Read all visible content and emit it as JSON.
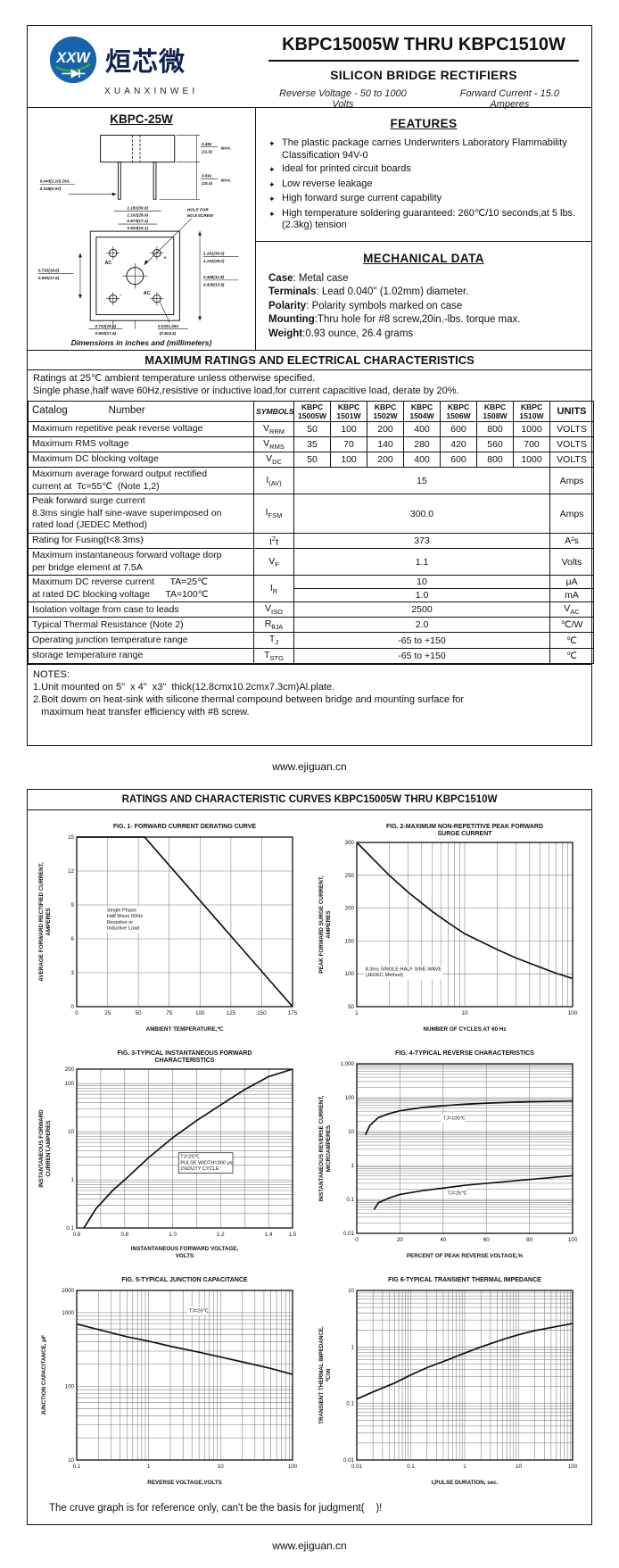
{
  "page1": {
    "logo": {
      "icon_text": "XXW",
      "cn": "烜芯微",
      "en": "XUANXINWEI"
    },
    "title": "KBPC15005W THRU KBPC1510W",
    "subtitle": "SILICON BRIDGE RECTIFIERS",
    "tagline_left": "Reverse Voltage - 50 to 1000 Volts",
    "tagline_right": "Forward Current - 15.0 Amperes",
    "package": {
      "name": "KBPC-25W",
      "labels": [
        "0.452",
        "(11.5)",
        "MAX.",
        "0.591",
        "(15.0)",
        "MAX.",
        "0.043(1.10) DIA.",
        "0.038(0.97)",
        "1.181(30.0)",
        "1.102(28.0)",
        "0.673(17.1)",
        "0.633(16.1)",
        "HOLE FOR",
        "NO.8 SCREW",
        "0.732(18.6)",
        "0.692(17.6)",
        "1.181(30.0)",
        "1.102(28.0)",
        "0.468(11.9)",
        "0.429(10.9)",
        "AC",
        "+",
        "-",
        "AC",
        "0.732(18.6)",
        "0.692(17.6)",
        "0.033x.250",
        "(0.8x6.4)"
      ],
      "caption": "Dimensions in inches and (millimeters)"
    },
    "features": {
      "heading": "FEATURES",
      "bullet": "✦",
      "items": [
        "The plastic package carries Underwriters Laboratory Flammability Classification 94V-0",
        "Ideal for printed circuit boards",
        "Low reverse leakage",
        "High forward surge current capability",
        "High temperature soldering guaranteed: 260℃/10 seconds,at 5 lbs. (2.3kg) tension"
      ]
    },
    "mech": {
      "heading": "MECHANICAL DATA",
      "lines": [
        {
          "label": "Case",
          "text": ": Metal case"
        },
        {
          "label": "Terminals",
          "text": ": Lead 0.040\"  (1.02mm) diameter."
        },
        {
          "label": "Polarity",
          "text": ": Polarity symbols marked on case"
        },
        {
          "label": "Mounting",
          "text": ":Thru hole for #8 screw,20in.-lbs. torque max."
        },
        {
          "label": "Weight",
          "text": ":0.93 ounce, 26.4 grams"
        }
      ]
    },
    "ratings": {
      "heading": "MAXIMUM RATINGS AND ELECTRICAL CHARACTERISTICS",
      "note1": "Ratings at 25℃ ambient temperature unless otherwise specified.",
      "note2": "Single phase,half wave 60Hz,resistive or inductive load,for current capacitive load, derate by 20%.",
      "col_catalog1": "Catalog",
      "col_catalog2": "Number",
      "col_symbols": "SYMBOLS",
      "col_units": "UNITS",
      "parts": [
        [
          "KBPC",
          "15005W"
        ],
        [
          "KBPC",
          "1501W"
        ],
        [
          "KBPC",
          "1502W"
        ],
        [
          "KBPC",
          "1504W"
        ],
        [
          "KBPC",
          "1506W"
        ],
        [
          "KBPC",
          "1508W"
        ],
        [
          "KBPC",
          "1510W"
        ]
      ],
      "rows": [
        {
          "type": "each",
          "param": [
            "Maximum repetitive peak reverse voltage"
          ],
          "sym": {
            "t": "V",
            "sub": "RRM"
          },
          "values": [
            "50",
            "100",
            "200",
            "400",
            "600",
            "800",
            "1000"
          ],
          "units": "VOLTS"
        },
        {
          "type": "each",
          "param": [
            "Maximum RMS voltage"
          ],
          "sym": {
            "t": "V",
            "sub": "RMS"
          },
          "values": [
            "35",
            "70",
            "140",
            "280",
            "420",
            "560",
            "700"
          ],
          "units": "VOLTS"
        },
        {
          "type": "each",
          "param": [
            "Maximum DC blocking voltage"
          ],
          "sym": {
            "t": "V",
            "sub": "DC"
          },
          "values": [
            "50",
            "100",
            "200",
            "400",
            "600",
            "800",
            "1000"
          ],
          "units": "VOLTS"
        },
        {
          "type": "span",
          "param": [
            "Maximum average forward output rectified",
            "current at  Tc=55℃  (Note 1,2)"
          ],
          "sym": {
            "t": "I",
            "sub": "(AV)"
          },
          "value": "15",
          "units": "Amps"
        },
        {
          "type": "span",
          "param": [
            "Peak forward surge current",
            "8.3ms single half sine-wave superimposed on",
            "rated load (JEDEC Method)"
          ],
          "sym": {
            "t": "I",
            "sub": "FSM"
          },
          "value": "300.0",
          "units": "Amps"
        },
        {
          "type": "span",
          "param": [
            "Rating for Fusing(t<8.3ms)"
          ],
          "sym": {
            "t": "I",
            "sup": "2",
            "t2": "t"
          },
          "value": "373",
          "units": "A²s"
        },
        {
          "type": "span",
          "param": [
            "Maximum instantaneous forward voltage dorp",
            "per bridge element at 7.5A"
          ],
          "sym": {
            "t": "V",
            "sub": "F"
          },
          "value": "1.1",
          "units": "Volts"
        },
        {
          "type": "double",
          "param": [
            "Maximum DC reverse current      TA=25℃",
            "at rated DC blocking voltage      TA=100℃"
          ],
          "sym": {
            "t": "I",
            "sub": "R"
          },
          "values2": [
            {
              "v": "10",
              "u": "μA"
            },
            {
              "v": "1.0",
              "u": "mA"
            }
          ]
        },
        {
          "type": "span",
          "param": [
            "Isolation voltage from case to leads"
          ],
          "sym": {
            "t": "V",
            "sub": "ISO"
          },
          "value": "2500",
          "units": {
            "t": "V",
            "sub": "AC"
          }
        },
        {
          "type": "span",
          "param": [
            "Typical Thermal Resistance (Note 2)"
          ],
          "sym": {
            "t": "R",
            "sub": "θJA"
          },
          "value": "2.0",
          "units": "℃/W"
        },
        {
          "type": "span",
          "param": [
            "Operating junction temperature range"
          ],
          "sym": {
            "t": "T",
            "sub": "J"
          },
          "value": "-65 to +150",
          "units": "℃"
        },
        {
          "type": "span",
          "param": [
            "storage temperature range"
          ],
          "sym": {
            "t": "T",
            "sub": "STG"
          },
          "value": "-65 to +150",
          "units": "℃"
        }
      ]
    },
    "notes": {
      "heading": "NOTES:",
      "lines": [
        "1.Unit mounted on 5\"  x 4\"  x3\"  thick(12.8cmx10.2cmx7.3cm)Al.plate.",
        "2.Bolt dowm on heat-sink with silicone thermal compound between bridge and mounting surface for",
        "   maximum heat transfer efficiency with #8 screw."
      ]
    },
    "footer": "www.ejiguan.cn"
  },
  "page2": {
    "heading": "RATINGS AND CHARACTERISTIC CURVES KBPC15005W THRU KBPC1510W",
    "disclaimer": "The cruve graph is for reference only, can't be the basis for judgment(    )!",
    "footer": "www.ejiguan.cn"
  },
  "chart_data": [
    {
      "type": "line",
      "title": [
        "FIG. 1- FORWARD CURRENT DERATING CURVE"
      ],
      "xlabel": "AMBIENT TEMPERATURE,℃",
      "ylabel": "AVERAGE FORWARD RECTIFIED CURRENT,\nAMPERES",
      "xscale": "linear",
      "yscale": "linear",
      "xlim": [
        0,
        175
      ],
      "ylim": [
        0,
        15
      ],
      "xticks": [
        {
          "v": 0,
          "l": "0"
        },
        {
          "v": 25,
          "l": "25"
        },
        {
          "v": 50,
          "l": "50"
        },
        {
          "v": 75,
          "l": "75"
        },
        {
          "v": 100,
          "l": "100"
        },
        {
          "v": 125,
          "l": "125"
        },
        {
          "v": 150,
          "l": "150"
        },
        {
          "v": 175,
          "l": "175"
        }
      ],
      "yticks": [
        {
          "v": 0,
          "l": "0"
        },
        {
          "v": 3,
          "l": "3"
        },
        {
          "v": 6,
          "l": "6"
        },
        {
          "v": 9,
          "l": "9"
        },
        {
          "v": 12,
          "l": "12"
        },
        {
          "v": 15,
          "l": "15"
        }
      ],
      "series": [
        {
          "name": "derating",
          "points": [
            [
              0,
              15
            ],
            [
              55,
              15
            ],
            [
              175,
              0
            ]
          ]
        }
      ],
      "ann": [
        {
          "text": "Single Phase\nHalf Wave 60Hz\nResistive or\nInductive Load",
          "fx": 0.14,
          "fy": 0.44
        }
      ]
    },
    {
      "type": "line",
      "title": [
        "FIG. 2-MAXIMUM NON-REPETITIVE PEAK FORWARD",
        "SURGE CURRENT"
      ],
      "xlabel": "NUMBER OF CYCLES AT 60 Hz",
      "ylabel": "PEAK  FORWARD SURGE CURRENT,\nAMPERES",
      "xscale": "log",
      "yscale": "linear",
      "xlim": [
        1,
        100
      ],
      "ylim": [
        50,
        300
      ],
      "xticks": [
        {
          "v": 1,
          "l": "1"
        },
        {
          "v": 10,
          "l": "10"
        },
        {
          "v": 100,
          "l": "100"
        }
      ],
      "yticks": [
        {
          "v": 50,
          "l": "50"
        },
        {
          "v": 100,
          "l": "100"
        },
        {
          "v": 150,
          "l": "150"
        },
        {
          "v": 200,
          "l": "200"
        },
        {
          "v": 250,
          "l": "250"
        },
        {
          "v": 300,
          "l": "300"
        }
      ],
      "series": [
        {
          "name": "surge",
          "points": [
            [
              1,
              300
            ],
            [
              2,
              250
            ],
            [
              3,
              224
            ],
            [
              5,
              195
            ],
            [
              7,
              178
            ],
            [
              10,
              161
            ],
            [
              15,
              147
            ],
            [
              20,
              137
            ],
            [
              30,
              124
            ],
            [
              50,
              110
            ],
            [
              70,
              101
            ],
            [
              100,
              93
            ]
          ]
        }
      ],
      "ann": [
        {
          "text": "8.3ms SINGLE HALF SINE-WAVE\n(JEDEC Method)",
          "fx": 0.04,
          "fy": 0.78
        }
      ]
    },
    {
      "type": "line",
      "title": [
        "FIG. 3-TYPICAL INSTANTANEOUS FORWARD",
        "CHARACTERISTICS"
      ],
      "xlabel": "INSTANTANEOUS FORWARD VOLTAGE,\nVOLTS",
      "ylabel": "INSTANTANEOUS FORWARD\nCURRENT,AMPERES",
      "xscale": "linear",
      "yscale": "log",
      "xlim": [
        0.6,
        1.5
      ],
      "ylim": [
        0.1,
        200
      ],
      "xgrid": [
        0.6,
        0.7,
        0.8,
        0.9,
        1.0,
        1.1,
        1.2,
        1.3,
        1.4,
        1.5
      ],
      "xticks": [
        {
          "v": 0.6,
          "l": "0.6"
        },
        {
          "v": 0.8,
          "l": "0.8"
        },
        {
          "v": 1.0,
          "l": "1.0"
        },
        {
          "v": 1.2,
          "l": "1.2"
        },
        {
          "v": 1.4,
          "l": "1.4"
        },
        {
          "v": 1.5,
          "l": "1.5"
        }
      ],
      "yticks": [
        {
          "v": 0.1,
          "l": "0.1"
        },
        {
          "v": 1,
          "l": "1"
        },
        {
          "v": 10,
          "l": "10"
        },
        {
          "v": 100,
          "l": "100"
        },
        {
          "v": 200,
          "l": "200"
        }
      ],
      "series": [
        {
          "name": "vf",
          "points": [
            [
              0.63,
              0.1
            ],
            [
              0.68,
              0.25
            ],
            [
              0.75,
              0.6
            ],
            [
              0.8,
              1.0
            ],
            [
              0.9,
              2.9
            ],
            [
              1.0,
              7.5
            ],
            [
              1.1,
              17
            ],
            [
              1.2,
              36
            ],
            [
              1.3,
              75
            ],
            [
              1.4,
              140
            ],
            [
              1.5,
              200
            ]
          ]
        }
      ],
      "ann": [
        {
          "text": "TJ=25℃\nPULSE WIDTH=300 μs\n1%DUTY CYCLE",
          "fx": 0.48,
          "fy": 0.56,
          "boxed": true
        }
      ]
    },
    {
      "type": "line",
      "title": [
        "FIG. 4-TYPICAL REVERSE CHARACTERISTICS"
      ],
      "xlabel": "PERCENT OF PEAK REVERSE VOLTAGE,%",
      "ylabel": "INSTANTANEOUS REVERSE CURRENT,\nMICROAMPERES",
      "xscale": "linear",
      "yscale": "log",
      "xlim": [
        0,
        100
      ],
      "ylim": [
        0.01,
        1000
      ],
      "xticks": [
        {
          "v": 0,
          "l": "0"
        },
        {
          "v": 20,
          "l": "20"
        },
        {
          "v": 40,
          "l": "40"
        },
        {
          "v": 60,
          "l": "60"
        },
        {
          "v": 80,
          "l": "80"
        },
        {
          "v": 100,
          "l": "100"
        }
      ],
      "yticks": [
        {
          "v": 0.01,
          "l": "0.01"
        },
        {
          "v": 0.1,
          "l": "0.1"
        },
        {
          "v": 1,
          "l": "1"
        },
        {
          "v": 10,
          "l": "10"
        },
        {
          "v": 100,
          "l": "100"
        },
        {
          "v": 1000,
          "l": "1,000"
        }
      ],
      "series": [
        {
          "name": "TJ=100C",
          "points": [
            [
              4,
              8
            ],
            [
              6,
              15
            ],
            [
              10,
              26
            ],
            [
              15,
              34
            ],
            [
              20,
              41
            ],
            [
              30,
              51
            ],
            [
              40,
              58
            ],
            [
              50,
              64
            ],
            [
              60,
              69
            ],
            [
              80,
              76
            ],
            [
              100,
              80
            ]
          ]
        },
        {
          "name": "TJ=25C",
          "points": [
            [
              8,
              0.05
            ],
            [
              10,
              0.08
            ],
            [
              15,
              0.11
            ],
            [
              20,
              0.14
            ],
            [
              30,
              0.18
            ],
            [
              50,
              0.26
            ],
            [
              70,
              0.34
            ],
            [
              100,
              0.5
            ]
          ]
        }
      ],
      "ann": [
        {
          "text": "TJ=100℃",
          "fx": 0.4,
          "fy": 0.33
        },
        {
          "text": "TJ=25℃",
          "fx": 0.42,
          "fy": 0.77
        }
      ]
    },
    {
      "type": "line",
      "title": [
        "FIG. 5-TYPICAL JUNCTION CAPACITANCE"
      ],
      "xlabel": "REVERSE VOLTAGE,VOLTS",
      "ylabel": "JUNCTION CAPACITANCE, pF",
      "xscale": "log",
      "yscale": "log",
      "xlim": [
        0.1,
        100
      ],
      "ylim": [
        10,
        2000
      ],
      "xticks": [
        {
          "v": 0.1,
          "l": "0.1"
        },
        {
          "v": 1,
          "l": "1"
        },
        {
          "v": 10,
          "l": "10"
        },
        {
          "v": 100,
          "l": "100"
        }
      ],
      "yticks": [
        {
          "v": 10,
          "l": "10"
        },
        {
          "v": 100,
          "l": "100"
        },
        {
          "v": 1000,
          "l": "1000"
        },
        {
          "v": 2000,
          "l": "2000"
        }
      ],
      "series": [
        {
          "name": "cj",
          "points": [
            [
              0.1,
              700
            ],
            [
              0.2,
              590
            ],
            [
              0.5,
              470
            ],
            [
              1,
              410
            ],
            [
              2,
              350
            ],
            [
              5,
              290
            ],
            [
              10,
              250
            ],
            [
              20,
              215
            ],
            [
              50,
              175
            ],
            [
              100,
              145
            ]
          ]
        }
      ],
      "ann": [
        {
          "text": "TJ=25℃",
          "fx": 0.52,
          "fy": 0.13
        }
      ]
    },
    {
      "type": "line",
      "title": [
        "FIG 6-TYPICAL TRANSIENT THERMAL IMPEDANCE"
      ],
      "xlabel": "t,PULSE DURATION, sec.",
      "ylabel": "TRANSIENT THERMAL IMPEDANCE,\n℃/W",
      "xscale": "log",
      "yscale": "log",
      "xlim": [
        0.01,
        100
      ],
      "ylim": [
        0.01,
        10
      ],
      "xticks": [
        {
          "v": 0.01,
          "l": "0.01"
        },
        {
          "v": 0.1,
          "l": "0.1"
        },
        {
          "v": 1,
          "l": "1"
        },
        {
          "v": 10,
          "l": "10"
        },
        {
          "v": 100,
          "l": "100"
        }
      ],
      "yticks": [
        {
          "v": 0.01,
          "l": "0.01"
        },
        {
          "v": 0.1,
          "l": "0.1"
        },
        {
          "v": 1,
          "l": "1"
        },
        {
          "v": 10,
          "l": "10"
        }
      ],
      "series": [
        {
          "name": "zth",
          "points": [
            [
              0.01,
              0.12
            ],
            [
              0.02,
              0.16
            ],
            [
              0.05,
              0.23
            ],
            [
              0.1,
              0.32
            ],
            [
              0.2,
              0.43
            ],
            [
              0.5,
              0.6
            ],
            [
              1,
              0.78
            ],
            [
              2,
              1.0
            ],
            [
              5,
              1.35
            ],
            [
              10,
              1.65
            ],
            [
              20,
              1.95
            ],
            [
              50,
              2.3
            ],
            [
              100,
              2.6
            ]
          ]
        }
      ],
      "ann": []
    }
  ]
}
